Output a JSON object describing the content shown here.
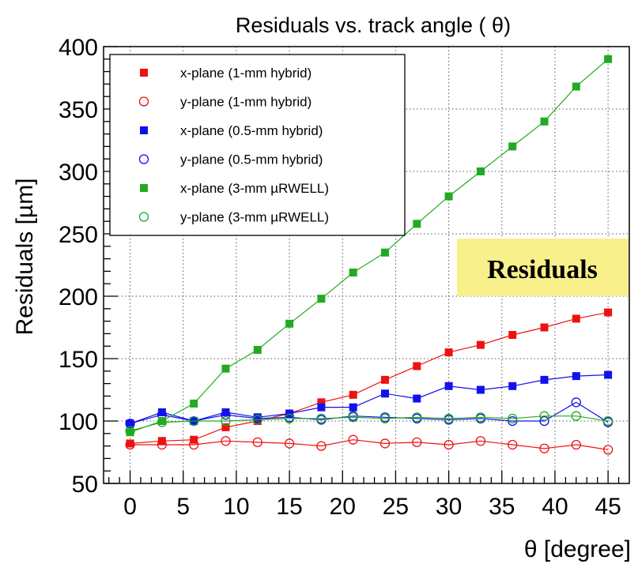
{
  "chart_data": {
    "type": "line",
    "title": "Residuals vs. track angle ( θ)",
    "xlabel": "θ [degree]",
    "ylabel": "Residuals [µm]",
    "xlim": [
      -2.5,
      47
    ],
    "ylim": [
      50,
      400
    ],
    "x_ticks": [
      0,
      5,
      10,
      15,
      20,
      25,
      30,
      35,
      40,
      45
    ],
    "y_ticks": [
      50,
      100,
      150,
      200,
      250,
      300,
      350,
      400
    ],
    "grid": true,
    "legend_position": "top-left",
    "annotation": "Residuals",
    "annotation_color": "#f8f08a",
    "x": [
      0,
      3,
      6,
      9,
      12,
      15,
      18,
      21,
      24,
      27,
      30,
      33,
      36,
      39,
      42,
      45
    ],
    "series": [
      {
        "name": "x-plane (1-mm hybrid)",
        "color": "#ee1111",
        "marker": "square-filled",
        "values": [
          82,
          84,
          85,
          95,
          100,
          106,
          115,
          121,
          133,
          144,
          155,
          161,
          169,
          175,
          182,
          187
        ]
      },
      {
        "name": "y-plane (1-mm hybrid)",
        "color": "#ee1111",
        "marker": "circle-open",
        "values": [
          81,
          81,
          81,
          84,
          83,
          82,
          80,
          85,
          82,
          83,
          81,
          84,
          81,
          78,
          81,
          77
        ]
      },
      {
        "name": "x-plane (0.5-mm hybrid)",
        "color": "#1111ee",
        "marker": "square-filled",
        "values": [
          98,
          107,
          100,
          107,
          103,
          106,
          111,
          111,
          122,
          118,
          128,
          125,
          128,
          133,
          136,
          137
        ]
      },
      {
        "name": "y-plane (0.5-mm hybrid)",
        "color": "#1111ee",
        "marker": "circle-open",
        "values": [
          98,
          105,
          100,
          105,
          102,
          103,
          101,
          104,
          103,
          102,
          101,
          102,
          100,
          100,
          115,
          99
        ]
      },
      {
        "name": "x-plane (3-mm  µRWELL)",
        "color": "#22aa22",
        "marker": "square-filled",
        "values": [
          91,
          100,
          114,
          142,
          157,
          178,
          198,
          219,
          235,
          258,
          280,
          300,
          320,
          340,
          368,
          390
        ]
      },
      {
        "name": "y-plane (3-mm  µRWELL)",
        "color": "#22aa22",
        "marker": "circle-open",
        "values": [
          92,
          99,
          100,
          100,
          101,
          102,
          102,
          103,
          102,
          103,
          102,
          103,
          102,
          104,
          104,
          100
        ]
      }
    ]
  }
}
